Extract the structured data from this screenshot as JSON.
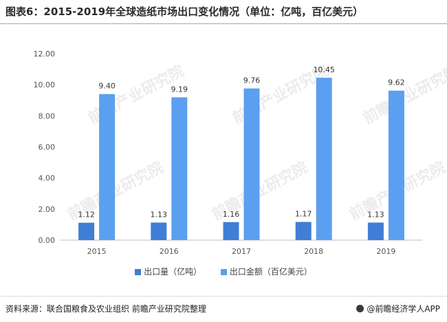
{
  "page": {
    "title": "图表6：2015-2019年全球造纸市场出口变化情况（单位：亿吨，百亿美元）",
    "source": "资料来源：联合国粮食及农业组织 前瞻产业研究院整理",
    "brand": "@前瞻经济学人APP",
    "watermark": "前瞻产业研究院"
  },
  "chart_data": {
    "type": "bar",
    "categories": [
      "2015",
      "2016",
      "2017",
      "2018",
      "2019"
    ],
    "series": [
      {
        "name": "出口量（亿吨）",
        "values": [
          1.12,
          1.13,
          1.16,
          1.17,
          1.13
        ],
        "color": "#3f7ed6"
      },
      {
        "name": "出口金额（百亿美元）",
        "values": [
          9.4,
          9.19,
          9.76,
          10.45,
          9.62
        ],
        "color": "#5b9ff0"
      }
    ],
    "ylim": [
      0,
      12
    ],
    "yticks": [
      "0.00",
      "2.00",
      "4.00",
      "6.00",
      "8.00",
      "10.00",
      "12.00"
    ],
    "grid": false,
    "legend": "bottom"
  }
}
